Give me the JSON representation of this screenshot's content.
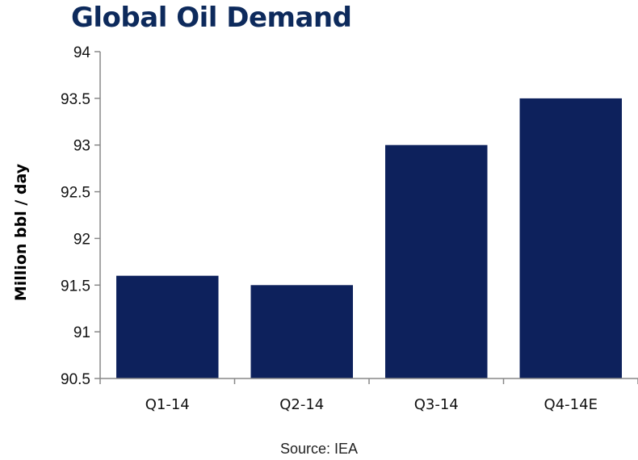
{
  "chart_data": {
    "type": "bar",
    "title": "Global Oil Demand",
    "ylabel": "Million bbl / day",
    "xlabel": "",
    "categories": [
      "Q1-14",
      "Q2-14",
      "Q3-14",
      "Q4-14E"
    ],
    "values": [
      91.6,
      91.5,
      93.0,
      93.5
    ],
    "ylim": [
      90.5,
      94
    ],
    "yticks": [
      "90.5",
      "91",
      "91.5",
      "92",
      "92.5",
      "93",
      "93.5",
      "94"
    ],
    "bar_color": "#0d215c",
    "grid": false,
    "legend": "none",
    "source": "Source: IEA"
  }
}
